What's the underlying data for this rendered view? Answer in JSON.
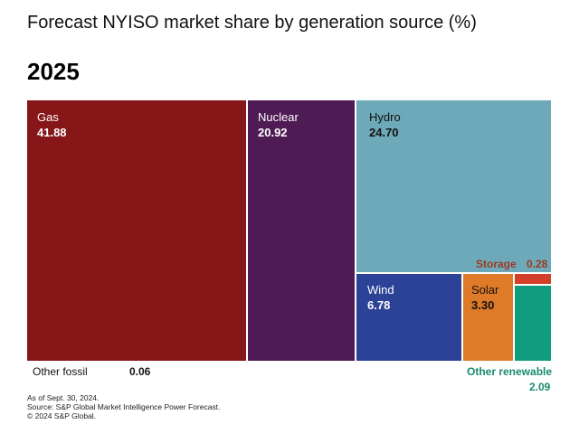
{
  "chart_data": {
    "type": "treemap",
    "title": "Forecast NYISO market share by generation source (%)",
    "subtitle": "2025",
    "unit": "%",
    "categories": [
      "Gas",
      "Nuclear",
      "Hydro",
      "Wind",
      "Solar",
      "Storage",
      "Other renewable",
      "Other fossil"
    ],
    "values": [
      41.88,
      20.92,
      24.7,
      6.78,
      3.3,
      0.28,
      2.09,
      0.06
    ],
    "colors": {
      "Gas": "#871619",
      "Nuclear": "#4F1B55",
      "Hydro": "#6EA9BA",
      "Wind": "#2C4297",
      "Solar": "#DF7A28",
      "Storage": "#D2402A",
      "Other renewable": "#109C7E",
      "Other fossil": "#333333"
    },
    "label_colors": {
      "storage": "#9B3B20",
      "other_renewable": "#1A8A6E"
    }
  },
  "value_labels": {
    "gas": "41.88",
    "nuclear": "20.92",
    "hydro": "24.70",
    "wind": "6.78",
    "solar": "3.30",
    "storage": "0.28",
    "other_renewable": "2.09",
    "other_fossil": "0.06"
  },
  "notes": {
    "line1": "As of Sept. 30, 2024.",
    "line2": "Source: S&P Global Market Intelligence Power Forecast.",
    "line3": "© 2024 S&P Global."
  }
}
